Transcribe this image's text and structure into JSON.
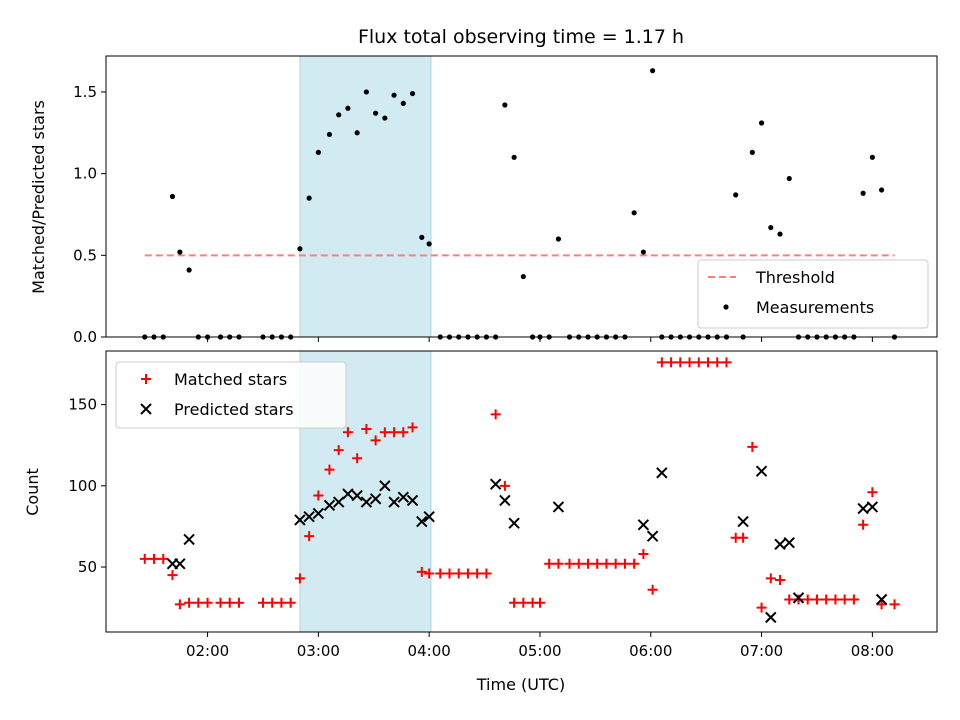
{
  "title": "Flux total observing time = 1.17 h",
  "colors": {
    "highlight": "#add8e6",
    "threshold": "#ff7f7f",
    "measurements": "#000000",
    "matched": "#ff0000",
    "predicted": "#000000"
  },
  "chart_data": [
    {
      "type": "scatter",
      "panel": "top",
      "title": "Flux total observing time = 1.17 h",
      "xlabel": "",
      "ylabel": "Matched/Predicted stars",
      "xlim": [
        "01:05",
        "08:35"
      ],
      "ylim": [
        0,
        1.72
      ],
      "yticks": [
        0.0,
        0.5,
        1.0,
        1.5
      ],
      "ytick_labels": [
        "0.0",
        "0.5",
        "1.0",
        "1.5"
      ],
      "highlight_span": [
        "02:50",
        "04:01"
      ],
      "legend": {
        "position": "lower right",
        "entries": [
          "Threshold",
          "Measurements"
        ]
      },
      "series": [
        {
          "name": "Threshold",
          "kind": "dashed-line",
          "x": [
            "01:26",
            "08:12"
          ],
          "y": [
            0.5,
            0.5
          ]
        },
        {
          "name": "Measurements",
          "kind": "points",
          "x": [
            "01:26",
            "01:31",
            "01:36",
            "01:41",
            "01:45",
            "01:50",
            "01:55",
            "02:00",
            "02:07",
            "02:12",
            "02:17",
            "02:30",
            "02:35",
            "02:40",
            "02:45",
            "02:50",
            "02:55",
            "03:00",
            "03:06",
            "03:11",
            "03:16",
            "03:21",
            "03:26",
            "03:31",
            "03:36",
            "03:41",
            "03:46",
            "03:51",
            "03:56",
            "04:00",
            "04:06",
            "04:11",
            "04:16",
            "04:21",
            "04:26",
            "04:31",
            "04:36",
            "04:41",
            "04:46",
            "04:51",
            "04:56",
            "05:00",
            "05:05",
            "05:10",
            "05:16",
            "05:21",
            "05:26",
            "05:31",
            "05:36",
            "05:41",
            "05:46",
            "05:51",
            "05:56",
            "06:01",
            "06:06",
            "06:11",
            "06:16",
            "06:21",
            "06:26",
            "06:31",
            "06:36",
            "06:41",
            "06:46",
            "06:50",
            "06:55",
            "07:00",
            "07:05",
            "07:10",
            "07:15",
            "07:20",
            "07:25",
            "07:30",
            "07:35",
            "07:40",
            "07:45",
            "07:50",
            "07:55",
            "08:00",
            "08:05",
            "08:12"
          ],
          "y": [
            0,
            0,
            0,
            0.86,
            0.52,
            0.41,
            0,
            0,
            0,
            0,
            0,
            0,
            0,
            0,
            0,
            0.54,
            0.85,
            1.13,
            1.24,
            1.36,
            1.4,
            1.25,
            1.5,
            1.37,
            1.34,
            1.48,
            1.43,
            1.49,
            0.61,
            0.57,
            0,
            0,
            0,
            0,
            0,
            0,
            0,
            1.42,
            1.1,
            0.37,
            0,
            0,
            0,
            0.6,
            0,
            0,
            0,
            0,
            0,
            0,
            0,
            0.76,
            0.52,
            1.63,
            0,
            0,
            0,
            0,
            0,
            0,
            0,
            0,
            0.87,
            0,
            1.13,
            1.31,
            0.67,
            0.63,
            0.97,
            0,
            0,
            0,
            0,
            0,
            0,
            0,
            0.88,
            1.1,
            0.9,
            0
          ]
        }
      ]
    },
    {
      "type": "scatter",
      "panel": "bottom",
      "xlabel": "Time (UTC)",
      "ylabel": "Count",
      "xlim": [
        "01:05",
        "08:35"
      ],
      "ylim": [
        10,
        183
      ],
      "xticks": [
        "02:00",
        "03:00",
        "04:00",
        "05:00",
        "06:00",
        "07:00",
        "08:00"
      ],
      "yticks": [
        50,
        100,
        150
      ],
      "ytick_labels": [
        "50",
        "100",
        "150"
      ],
      "highlight_span": [
        "02:50",
        "04:01"
      ],
      "legend": {
        "position": "upper left",
        "entries": [
          "Matched stars",
          "Predicted stars"
        ]
      },
      "series": [
        {
          "name": "Matched stars",
          "marker": "+",
          "x": [
            "01:26",
            "01:31",
            "01:36",
            "01:41",
            "01:45",
            "01:50",
            "01:55",
            "02:00",
            "02:07",
            "02:12",
            "02:17",
            "02:30",
            "02:35",
            "02:40",
            "02:45",
            "02:50",
            "02:55",
            "03:00",
            "03:06",
            "03:11",
            "03:16",
            "03:21",
            "03:26",
            "03:31",
            "03:36",
            "03:41",
            "03:46",
            "03:51",
            "03:56",
            "04:00",
            "04:06",
            "04:11",
            "04:16",
            "04:21",
            "04:26",
            "04:31",
            "04:36",
            "04:41",
            "04:46",
            "04:51",
            "04:56",
            "05:00",
            "05:05",
            "05:10",
            "05:16",
            "05:21",
            "05:26",
            "05:31",
            "05:36",
            "05:41",
            "05:46",
            "05:51",
            "05:56",
            "06:01",
            "06:06",
            "06:11",
            "06:16",
            "06:21",
            "06:26",
            "06:31",
            "06:36",
            "06:41",
            "06:46",
            "06:50",
            "06:55",
            "07:00",
            "07:05",
            "07:10",
            "07:15",
            "07:20",
            "07:25",
            "07:30",
            "07:35",
            "07:40",
            "07:45",
            "07:50",
            "07:55",
            "08:00",
            "08:05",
            "08:12"
          ],
          "y": [
            55,
            55,
            55,
            45,
            27,
            28,
            28,
            28,
            28,
            28,
            28,
            28,
            28,
            28,
            28,
            43,
            69,
            94,
            110,
            122,
            133,
            117,
            135,
            128,
            133,
            133,
            133,
            136,
            47,
            46,
            46,
            46,
            46,
            46,
            46,
            46,
            144,
            100,
            28,
            28,
            28,
            28,
            52,
            52,
            52,
            52,
            52,
            52,
            52,
            52,
            52,
            52,
            58,
            36,
            176,
            176,
            176,
            176,
            176,
            176,
            176,
            176,
            68,
            68,
            124,
            25,
            43,
            42,
            30,
            30,
            30,
            30,
            30,
            30,
            30,
            30,
            76,
            96,
            27,
            27
          ]
        },
        {
          "name": "Predicted stars",
          "marker": "x",
          "x": [
            "01:41",
            "01:45",
            "01:50",
            "02:50",
            "02:55",
            "03:00",
            "03:06",
            "03:11",
            "03:16",
            "03:21",
            "03:26",
            "03:31",
            "03:36",
            "03:41",
            "03:46",
            "03:51",
            "03:56",
            "04:00",
            "04:36",
            "04:41",
            "04:46",
            "05:10",
            "05:56",
            "06:01",
            "06:06",
            "06:50",
            "07:00",
            "07:05",
            "07:10",
            "07:15",
            "07:20",
            "07:55",
            "08:00",
            "08:05"
          ],
          "y": [
            52,
            52,
            67,
            79,
            81,
            83,
            88,
            90,
            95,
            94,
            90,
            92,
            100,
            90,
            93,
            91,
            78,
            81,
            101,
            91,
            77,
            87,
            76,
            69,
            108,
            78,
            109,
            19,
            64,
            65,
            31,
            86,
            87,
            30
          ]
        }
      ]
    }
  ]
}
